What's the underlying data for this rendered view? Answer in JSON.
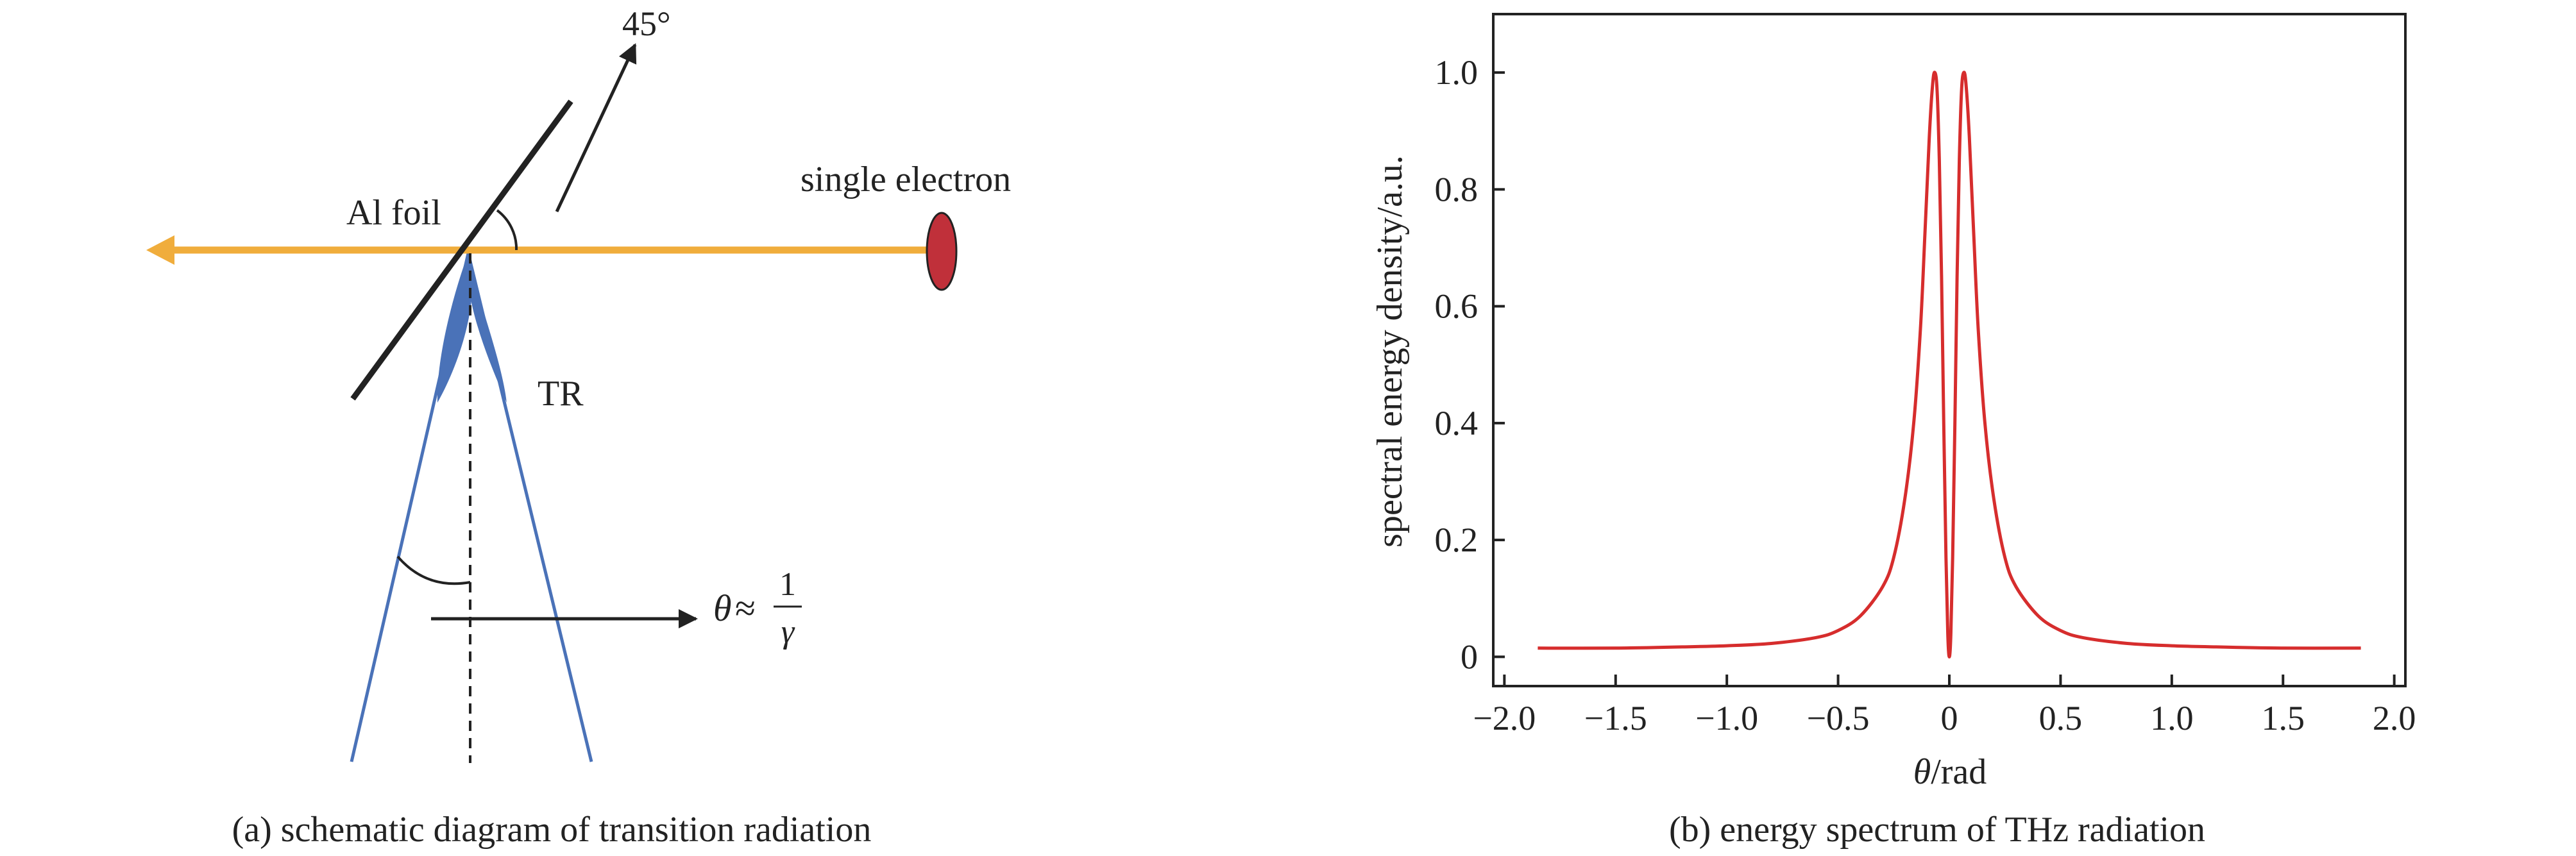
{
  "panel_a": {
    "label_45": "45°",
    "label_single_electron": "single electron",
    "label_al_foil": "Al foil",
    "label_tr": "TR",
    "theta_symbol": "θ",
    "approx_symbol": "≈",
    "frac_numerator": "1",
    "frac_denominator": "γ",
    "caption": "(a) schematic diagram of transition radiation",
    "colors": {
      "beam": "#f0ad3c",
      "electron": "#c0303a",
      "lobe": "#4a72b8",
      "ray": "#4a72b8",
      "line": "#222222"
    }
  },
  "panel_b": {
    "caption": "(b) energy spectrum of THz radiation",
    "chart_data": {
      "type": "line",
      "xlabel_symbol": "θ",
      "xlabel_unit": "/rad",
      "ylabel": "spectral energy density/a.u.",
      "xlim": [
        -2.05,
        2.05
      ],
      "ylim": [
        -0.05,
        1.1
      ],
      "xticks": [
        -2.0,
        -1.5,
        -1.0,
        -0.5,
        0,
        0.5,
        1.0,
        1.5,
        2.0
      ],
      "xtick_labels": [
        "−2.0",
        "−1.5",
        "−1.0",
        "−0.5",
        "0",
        "0.5",
        "1.0",
        "1.5",
        "2.0"
      ],
      "yticks": [
        0,
        0.2,
        0.4,
        0.6,
        0.8,
        1.0
      ],
      "ytick_labels": [
        "0",
        "0.2",
        "0.4",
        "0.6",
        "0.8",
        "1.0"
      ],
      "grid": false,
      "color": "#d62d2d",
      "series": [
        {
          "x": [
            -1.85,
            -1.5,
            -1.2,
            -1.0,
            -0.8,
            -0.6,
            -0.5,
            -0.4,
            -0.3,
            -0.25,
            -0.2,
            -0.16,
            -0.13,
            -0.11,
            -0.09,
            -0.075,
            -0.065,
            -0.055,
            -0.045,
            -0.035,
            -0.025,
            -0.015,
            -0.007,
            0,
            0.007,
            0.015,
            0.025,
            0.035,
            0.045,
            0.055,
            0.065,
            0.075,
            0.09,
            0.11,
            0.13,
            0.16,
            0.2,
            0.25,
            0.3,
            0.4,
            0.5,
            0.6,
            0.8,
            1.0,
            1.2,
            1.5,
            1.85
          ],
          "y": [
            0.015,
            0.015,
            0.017,
            0.019,
            0.023,
            0.033,
            0.045,
            0.07,
            0.12,
            0.17,
            0.27,
            0.4,
            0.56,
            0.72,
            0.89,
            0.98,
            1.0,
            0.97,
            0.85,
            0.65,
            0.4,
            0.17,
            0.04,
            0.0,
            0.04,
            0.17,
            0.4,
            0.65,
            0.85,
            0.97,
            1.0,
            0.98,
            0.89,
            0.72,
            0.56,
            0.4,
            0.27,
            0.17,
            0.12,
            0.07,
            0.045,
            0.033,
            0.023,
            0.019,
            0.017,
            0.015,
            0.015
          ]
        }
      ]
    }
  }
}
